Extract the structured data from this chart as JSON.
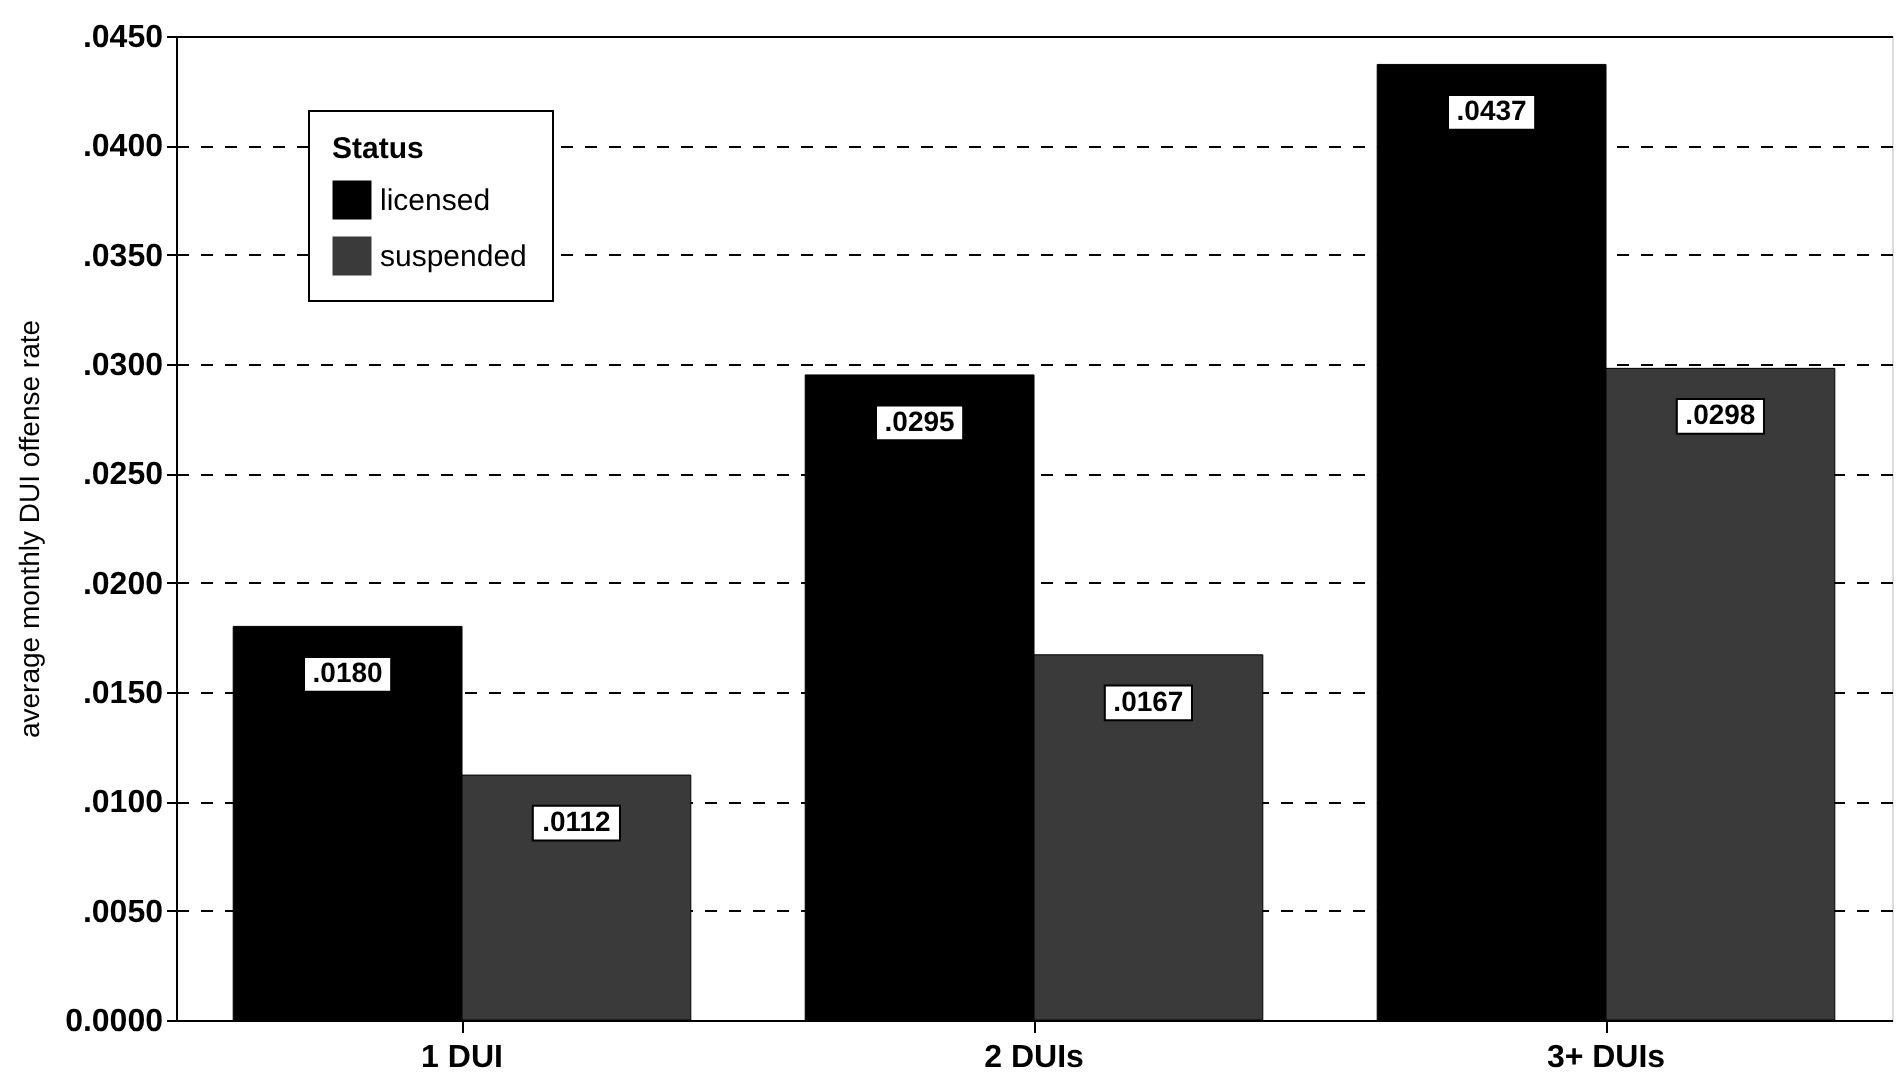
{
  "chart_data": {
    "type": "bar",
    "ylabel": "average monthly DUI offense rate",
    "legend_title": "Status",
    "legend": "top left",
    "grid": "y",
    "categories": [
      "1 DUI",
      "2 DUIs",
      "3+ DUIs"
    ],
    "series": [
      {
        "name": "licensed",
        "color": "#000000",
        "values": [
          0.018,
          0.0295,
          0.0437
        ],
        "value_labels": [
          ".0180",
          ".0295",
          ".0437"
        ]
      },
      {
        "name": "suspended",
        "color": "#3a3a3a",
        "values": [
          0.0112,
          0.0167,
          0.0298
        ],
        "value_labels": [
          ".0112",
          ".0167",
          ".0298"
        ]
      }
    ],
    "ylim": [
      0,
      0.045
    ],
    "yticks": [
      {
        "value": 0,
        "label": "0.0000"
      },
      {
        "value": 0.005,
        "label": ".0050"
      },
      {
        "value": 0.01,
        "label": ".0100"
      },
      {
        "value": 0.015,
        "label": ".0150"
      },
      {
        "value": 0.02,
        "label": ".0200"
      },
      {
        "value": 0.025,
        "label": ".0250"
      },
      {
        "value": 0.03,
        "label": ".0300"
      },
      {
        "value": 0.035,
        "label": ".0350"
      },
      {
        "value": 0.04,
        "label": ".0400"
      },
      {
        "value": 0.045,
        "label": ".0450"
      }
    ]
  }
}
